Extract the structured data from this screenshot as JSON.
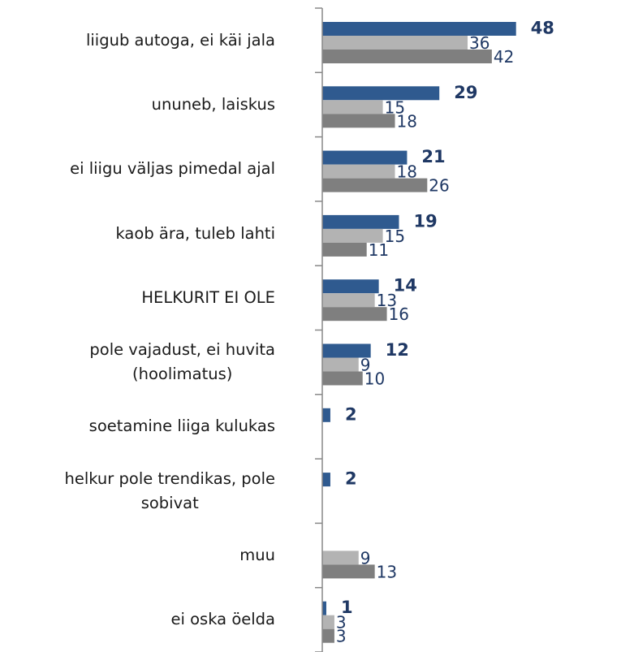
{
  "chart_data": {
    "type": "bar",
    "orientation": "horizontal",
    "categories": [
      "liigub autoga, ei käi jala",
      "ununeb,  laiskus",
      "ei liigu väljas pimedal ajal",
      "kaob ära, tuleb lahti",
      "HELKURIT EI OLE",
      "pole vajadust, ei huvita\n(hoolimatus)",
      "soetamine liiga kulukas",
      "helkur pole trendikas, pole\nsobivat",
      "muu",
      "ei oska öelda"
    ],
    "series": [
      {
        "color": "#2f5a8f",
        "label_color": "#1f3864",
        "bold_labels": true,
        "values": [
          48,
          29,
          21,
          19,
          14,
          12,
          2,
          2,
          null,
          1
        ]
      },
      {
        "color": "#b3b3b3",
        "label_color": "#1f3864",
        "bold_labels": false,
        "values": [
          36,
          15,
          18,
          15,
          13,
          9,
          null,
          null,
          9,
          3
        ]
      },
      {
        "color": "#7f7f7f",
        "label_color": "#1f3864",
        "bold_labels": false,
        "values": [
          42,
          18,
          26,
          11,
          16,
          10,
          null,
          null,
          13,
          3
        ]
      }
    ],
    "xlim": [
      0,
      74
    ]
  }
}
